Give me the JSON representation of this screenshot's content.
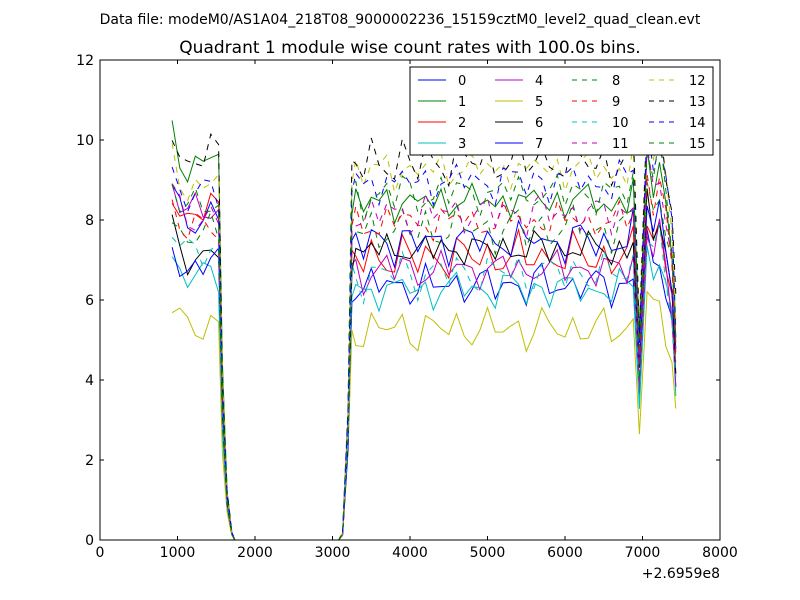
{
  "page": {
    "suptitle": "Data file: modeM0/AS1A04_218T08_9000002236_15159cztM0_level2_quad_clean.evt"
  },
  "chart_data": {
    "type": "line",
    "title": "Quadrant 1 module wise count rates with 100.0s bins.",
    "xlabel": "",
    "ylabel": "",
    "x_offset_label": "+2.6959e8",
    "xlim": [
      0,
      8000
    ],
    "ylim": [
      0,
      12
    ],
    "xticks": [
      0,
      1000,
      2000,
      3000,
      4000,
      5000,
      6000,
      7000,
      8000
    ],
    "yticks": [
      0,
      2,
      4,
      6,
      8,
      10,
      12
    ],
    "grid": false,
    "legend": {
      "placement": "top-right",
      "columns": 4
    },
    "shape": {
      "x": [
        930,
        1030,
        1130,
        1230,
        1330,
        1430,
        1530,
        1580,
        1640,
        1700,
        1740,
        2000,
        2500,
        3000,
        3080,
        3130,
        3200,
        3250,
        3300,
        3400,
        3500,
        3600,
        3700,
        3800,
        3900,
        4000,
        4100,
        4200,
        4300,
        4400,
        4500,
        4600,
        4700,
        4800,
        4900,
        5000,
        5100,
        5200,
        5300,
        5400,
        5500,
        5600,
        5700,
        5800,
        5900,
        6000,
        6100,
        6200,
        6300,
        6400,
        6500,
        6600,
        6700,
        6800,
        6880,
        6960,
        7060,
        7140,
        7220,
        7300,
        7380,
        7430
      ],
      "profile": [
        1,
        0.94,
        0.91,
        0.93,
        0.92,
        0.95,
        0.93,
        0.4,
        0.12,
        0.02,
        0,
        0,
        0,
        0,
        0,
        0.02,
        0.35,
        0.98,
        1,
        0.95,
        1.02,
        0.98,
        1.01,
        0.97,
        1.03,
        0.99,
        0.96,
        1.02,
        0.98,
        1.01,
        0.97,
        1.03,
        0.99,
        1.0,
        0.98,
        1.02,
        0.97,
        1.01,
        0.99,
        1.03,
        0.96,
        1.0,
        1.02,
        0.98,
        1.01,
        0.97,
        1.03,
        0.99,
        1.0,
        0.98,
        1.02,
        0.96,
        1.01,
        0.99,
        1.05,
        0.55,
        1.15,
        1.05,
        1.12,
        0.98,
        0.85,
        0.6
      ]
    },
    "series": [
      {
        "name": "0",
        "color": "#0000ff",
        "dash": "solid",
        "pre": 8.7,
        "mid": 6.4
      },
      {
        "name": "1",
        "color": "#008000",
        "dash": "solid",
        "pre": 10.2,
        "mid": 8.5
      },
      {
        "name": "2",
        "color": "#ff0000",
        "dash": "solid",
        "pre": 8.8,
        "mid": 7.1
      },
      {
        "name": "3",
        "color": "#00bfbf",
        "dash": "solid",
        "pre": 7.1,
        "mid": 6.3
      },
      {
        "name": "4",
        "color": "#bf00bf",
        "dash": "solid",
        "pre": 8.9,
        "mid": 6.8
      },
      {
        "name": "5",
        "color": "#bfbf00",
        "dash": "solid",
        "pre": 5.8,
        "mid": 5.3
      },
      {
        "name": "6",
        "color": "#000000",
        "dash": "solid",
        "pre": 7.7,
        "mid": 7.3
      },
      {
        "name": "7",
        "color": "#0000ff",
        "dash": "solid",
        "pre": 7.4,
        "mid": 7.5
      },
      {
        "name": "8",
        "color": "#008000",
        "dash": "dashed",
        "pre": 8.2,
        "mid": 7.8
      },
      {
        "name": "9",
        "color": "#ff0000",
        "dash": "dashed",
        "pre": 8.4,
        "mid": 8.0
      },
      {
        "name": "10",
        "color": "#00bfbf",
        "dash": "dashed",
        "pre": 7.8,
        "mid": 6.7
      },
      {
        "name": "11",
        "color": "#bf00bf",
        "dash": "dashed",
        "pre": 8.7,
        "mid": 8.2
      },
      {
        "name": "12",
        "color": "#bfbf00",
        "dash": "dashed",
        "pre": 9.6,
        "mid": 9.3
      },
      {
        "name": "13",
        "color": "#000000",
        "dash": "dashed",
        "pre": 10.3,
        "mid": 9.5
      },
      {
        "name": "14",
        "color": "#0000ff",
        "dash": "dashed",
        "pre": 9.3,
        "mid": 9.0
      },
      {
        "name": "15",
        "color": "#008000",
        "dash": "dashed",
        "pre": 9.0,
        "mid": 8.7
      }
    ]
  }
}
